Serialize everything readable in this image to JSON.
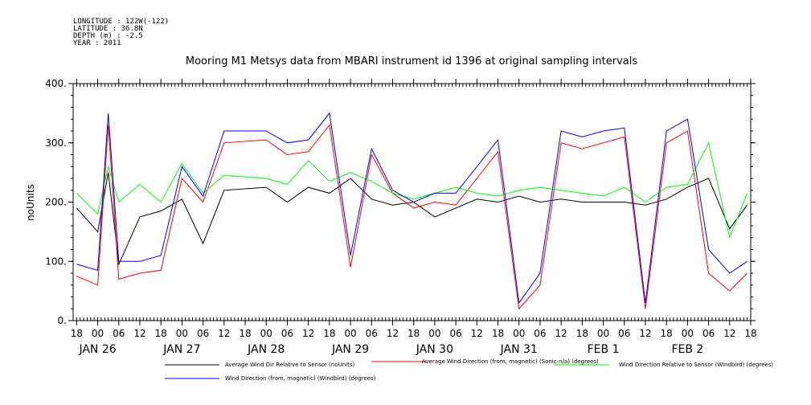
{
  "header": {
    "meta": [
      "LONGITUDE : 122W(-122)",
      "LATITUDE : 36.8N",
      "DEPTH (m) : -2.5",
      "YEAR : 2011"
    ],
    "title": "Mooring M1 Metsys data from MBARI instrument id 1396 at original sampling intervals"
  },
  "chart_data": {
    "type": "line",
    "title": "Mooring M1 Metsys data from MBARI instrument id 1396 at original sampling intervals",
    "xlabel": "",
    "ylabel": "noUnits",
    "xlim": [
      "2011-01-25T17:00",
      "2011-02-02T18:00"
    ],
    "ylim": [
      0,
      400
    ],
    "y_ticks": [
      "0.",
      "100.",
      "200.",
      "300.",
      "400."
    ],
    "x_hour_labels": [
      "18",
      "00",
      "06",
      "12",
      "18",
      "00",
      "06",
      "12",
      "18",
      "00",
      "06",
      "12",
      "18",
      "00",
      "06",
      "12",
      "18",
      "00",
      "06",
      "12",
      "18",
      "00",
      "06",
      "12",
      "18",
      "00",
      "06",
      "12",
      "18",
      "00",
      "06",
      "12",
      "18"
    ],
    "x_date_labels": [
      {
        "label": "JAN 26",
        "at": "2011-01-26T00:00"
      },
      {
        "label": "JAN 27",
        "at": "2011-01-27T00:00"
      },
      {
        "label": "JAN 28",
        "at": "2011-01-28T00:00"
      },
      {
        "label": "JAN 29",
        "at": "2011-01-29T00:00"
      },
      {
        "label": "JAN 30",
        "at": "2011-01-30T00:00"
      },
      {
        "label": "JAN 31",
        "at": "2011-01-31T00:00"
      },
      {
        "label": "FEB  1",
        "at": "2011-02-01T00:00"
      },
      {
        "label": "FEB  2",
        "at": "2011-02-02T00:00"
      }
    ],
    "grid": false,
    "legend_position": "bottom",
    "series": [
      {
        "name": "Average Wind Dir Relative to Sensor (noUnits)",
        "color": "#000000",
        "x": [
          "2011-01-25T18:00",
          "2011-01-26T00:00",
          "2011-01-26T03:00",
          "2011-01-26T06:00",
          "2011-01-26T12:00",
          "2011-01-26T18:00",
          "2011-01-27T00:00",
          "2011-01-27T06:00",
          "2011-01-27T12:00",
          "2011-01-28T00:00",
          "2011-01-28T06:00",
          "2011-01-28T12:00",
          "2011-01-28T18:00",
          "2011-01-29T00:00",
          "2011-01-29T06:00",
          "2011-01-29T12:00",
          "2011-01-29T18:00",
          "2011-01-30T00:00",
          "2011-01-30T06:00",
          "2011-01-30T12:00",
          "2011-01-30T18:00",
          "2011-01-31T00:00",
          "2011-01-31T06:00",
          "2011-01-31T12:00",
          "2011-01-31T18:00",
          "2011-02-01T00:00",
          "2011-02-01T06:00",
          "2011-02-01T12:00",
          "2011-02-01T18:00",
          "2011-02-02T00:00",
          "2011-02-02T06:00",
          "2011-02-02T12:00",
          "2011-02-02T17:00"
        ],
        "y": [
          190,
          150,
          250,
          95,
          175,
          185,
          205,
          130,
          220,
          225,
          200,
          225,
          215,
          240,
          205,
          195,
          200,
          175,
          190,
          205,
          200,
          210,
          200,
          205,
          200,
          200,
          200,
          195,
          205,
          225,
          240,
          155,
          195
        ]
      },
      {
        "name": "Average Wind Direction (from, magnetic) (Sonic-n/a) (degrees)",
        "color": "#ff0000",
        "x": [
          "2011-01-25T18:00",
          "2011-01-26T00:00",
          "2011-01-26T03:00",
          "2011-01-26T06:00",
          "2011-01-26T12:00",
          "2011-01-26T18:00",
          "2011-01-27T00:00",
          "2011-01-27T06:00",
          "2011-01-27T12:00",
          "2011-01-28T00:00",
          "2011-01-28T06:00",
          "2011-01-28T12:00",
          "2011-01-28T18:00",
          "2011-01-29T00:00",
          "2011-01-29T06:00",
          "2011-01-29T12:00",
          "2011-01-29T18:00",
          "2011-01-30T00:00",
          "2011-01-30T06:00",
          "2011-01-30T12:00",
          "2011-01-30T18:00",
          "2011-01-31T00:00",
          "2011-01-31T06:00",
          "2011-01-31T12:00",
          "2011-01-31T18:00",
          "2011-02-01T00:00",
          "2011-02-01T06:00",
          "2011-02-01T12:00",
          "2011-02-01T18:00",
          "2011-02-02T00:00",
          "2011-02-02T06:00",
          "2011-02-02T12:00",
          "2011-02-02T17:00"
        ],
        "y": [
          75,
          60,
          330,
          70,
          80,
          85,
          240,
          200,
          300,
          305,
          280,
          285,
          330,
          90,
          280,
          215,
          190,
          200,
          195,
          240,
          285,
          20,
          60,
          300,
          290,
          300,
          310,
          20,
          300,
          320,
          80,
          50,
          80
        ]
      },
      {
        "name": "Wind Direction Relative to Sensor (Windbird) (degrees)",
        "color": "#00ff00",
        "x": [
          "2011-01-25T18:00",
          "2011-01-26T00:00",
          "2011-01-26T03:00",
          "2011-01-26T06:00",
          "2011-01-26T12:00",
          "2011-01-26T18:00",
          "2011-01-27T00:00",
          "2011-01-27T06:00",
          "2011-01-27T12:00",
          "2011-01-28T00:00",
          "2011-01-28T06:00",
          "2011-01-28T12:00",
          "2011-01-28T18:00",
          "2011-01-29T00:00",
          "2011-01-29T06:00",
          "2011-01-29T12:00",
          "2011-01-29T18:00",
          "2011-01-30T00:00",
          "2011-01-30T06:00",
          "2011-01-30T12:00",
          "2011-01-30T18:00",
          "2011-01-31T00:00",
          "2011-01-31T06:00",
          "2011-01-31T12:00",
          "2011-01-31T18:00",
          "2011-02-01T00:00",
          "2011-02-01T06:00",
          "2011-02-01T12:00",
          "2011-02-01T18:00",
          "2011-02-02T00:00",
          "2011-02-02T06:00",
          "2011-02-02T12:00",
          "2011-02-02T17:00"
        ],
        "y": [
          215,
          180,
          260,
          200,
          230,
          200,
          265,
          215,
          245,
          240,
          230,
          270,
          235,
          250,
          235,
          215,
          205,
          215,
          225,
          215,
          210,
          220,
          225,
          220,
          215,
          210,
          225,
          200,
          225,
          230,
          300,
          140,
          215
        ]
      },
      {
        "name": "Wind Direction (from, magnetic) (Windbird) (degrees)",
        "color": "#0000ff",
        "x": [
          "2011-01-25T18:00",
          "2011-01-26T00:00",
          "2011-01-26T03:00",
          "2011-01-26T06:00",
          "2011-01-26T12:00",
          "2011-01-26T18:00",
          "2011-01-27T00:00",
          "2011-01-27T06:00",
          "2011-01-27T12:00",
          "2011-01-28T00:00",
          "2011-01-28T06:00",
          "2011-01-28T12:00",
          "2011-01-28T18:00",
          "2011-01-29T00:00",
          "2011-01-29T06:00",
          "2011-01-29T12:00",
          "2011-01-29T18:00",
          "2011-01-30T00:00",
          "2011-01-30T06:00",
          "2011-01-30T12:00",
          "2011-01-30T18:00",
          "2011-01-31T00:00",
          "2011-01-31T06:00",
          "2011-01-31T12:00",
          "2011-01-31T18:00",
          "2011-02-01T00:00",
          "2011-02-01T06:00",
          "2011-02-01T12:00",
          "2011-02-01T18:00",
          "2011-02-02T00:00",
          "2011-02-02T06:00",
          "2011-02-02T12:00",
          "2011-02-02T17:00"
        ],
        "y": [
          95,
          85,
          350,
          100,
          100,
          110,
          260,
          210,
          320,
          320,
          300,
          305,
          350,
          110,
          290,
          220,
          200,
          215,
          215,
          260,
          305,
          30,
          80,
          320,
          310,
          320,
          325,
          30,
          320,
          340,
          120,
          80,
          100
        ]
      }
    ]
  }
}
